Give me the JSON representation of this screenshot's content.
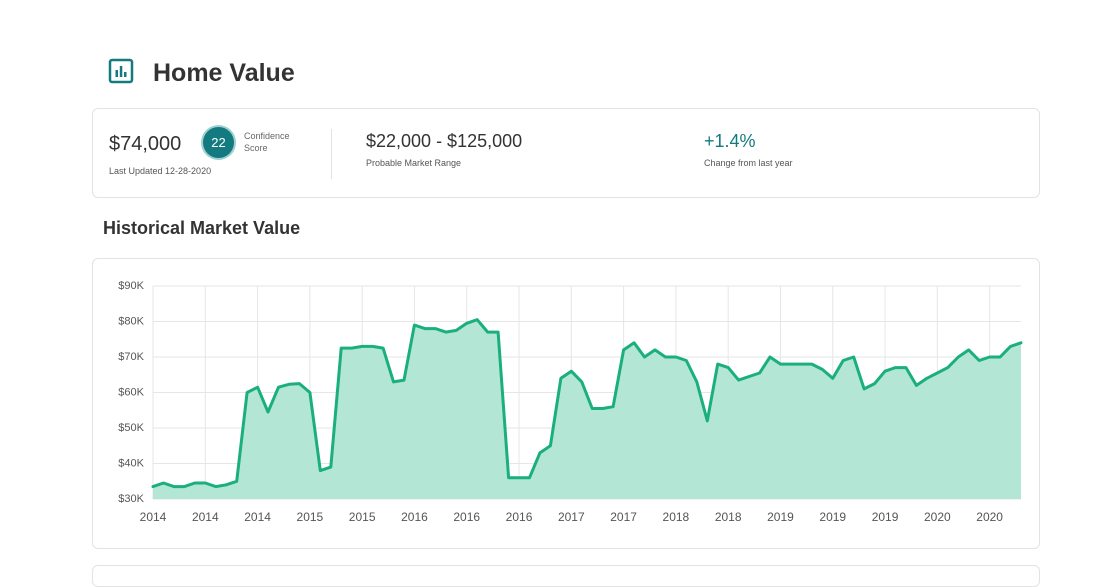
{
  "header": {
    "title": "Home Value"
  },
  "summary": {
    "value": "$74,000",
    "confidence_score": 22,
    "confidence_label": "Confidence Score",
    "last_updated": "Last Updated 12-28-2020",
    "range": "$22,000 - $125,000",
    "range_label": "Probable Market Range",
    "change": "+1.4%",
    "change_label": "Change from last year"
  },
  "section_title": "Historical Market Value",
  "chart_data": {
    "type": "area",
    "categories": [
      "2014",
      null,
      null,
      null,
      null,
      "2014",
      null,
      null,
      null,
      null,
      "2014",
      null,
      null,
      null,
      null,
      "2015",
      null,
      null,
      null,
      null,
      "2015",
      null,
      null,
      null,
      null,
      "2016",
      null,
      null,
      null,
      null,
      "2016",
      null,
      null,
      null,
      null,
      "2016",
      null,
      null,
      null,
      null,
      "2017",
      null,
      null,
      null,
      null,
      "2017",
      null,
      null,
      null,
      null,
      "2018",
      null,
      null,
      null,
      null,
      "2018",
      null,
      null,
      null,
      null,
      "2019",
      null,
      null,
      null,
      null,
      "2019",
      null,
      null,
      null,
      null,
      "2019",
      null,
      null,
      null,
      null,
      "2020",
      null,
      null,
      null,
      null,
      "2020",
      null,
      null,
      null
    ],
    "values": [
      33500,
      34500,
      33500,
      33500,
      34500,
      34500,
      33500,
      34000,
      35000,
      60000,
      61500,
      54500,
      61500,
      62300,
      62500,
      60000,
      38000,
      39000,
      72500,
      72500,
      73000,
      73000,
      72500,
      63000,
      63500,
      79000,
      78000,
      78000,
      77000,
      77500,
      79500,
      80500,
      77000,
      77000,
      36000,
      36000,
      36000,
      43000,
      45000,
      64000,
      66000,
      63000,
      55500,
      55500,
      56000,
      72000,
      74000,
      70000,
      72000,
      70000,
      70000,
      69000,
      63000,
      52000,
      68000,
      67000,
      63500,
      64500,
      65500,
      70000,
      68000,
      68000,
      68000,
      68000,
      66500,
      64000,
      69000,
      70000,
      61000,
      62500,
      66000,
      67000,
      67000,
      62000,
      64000,
      65500,
      67000,
      70000,
      72000,
      69000,
      70000,
      70000,
      73000,
      74000
    ],
    "color": "#1aaf7d",
    "fill_color": "#b3e6d5",
    "ylim": [
      30000,
      90000
    ],
    "yticks": [
      {
        "value": 30000,
        "label": "$30K"
      },
      {
        "value": 40000,
        "label": "$40K"
      },
      {
        "value": 50000,
        "label": "$50K"
      },
      {
        "value": 60000,
        "label": "$60K"
      },
      {
        "value": 70000,
        "label": "$70K"
      },
      {
        "value": 80000,
        "label": "$80K"
      },
      {
        "value": 90000,
        "label": "$90K"
      }
    ],
    "grid": true
  }
}
